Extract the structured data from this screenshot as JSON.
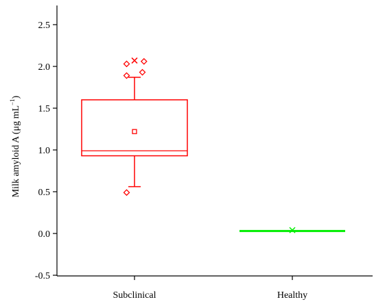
{
  "chart_data": {
    "type": "box",
    "ylabel": "Milk amyloid A (μg mL",
    "ylabel_exponent": "−1",
    "ylabel_close": ")",
    "ylim": [
      -0.5,
      2.75
    ],
    "yticks": [
      -0.5,
      0.0,
      0.5,
      1.0,
      1.5,
      2.0,
      2.5
    ],
    "ytick_labels": [
      "-0.5",
      "0.0",
      "0.5",
      "1.0",
      "1.5",
      "2.0",
      "2.5"
    ],
    "grid": false,
    "categories": [
      "Subclinical",
      "Healthy"
    ],
    "boxes": [
      {
        "category": "Subclinical",
        "color": "#ff0000",
        "whisker_low": 0.56,
        "q1": 0.93,
        "median": 0.99,
        "q3": 1.6,
        "whisker_high": 1.87,
        "mean": 1.22,
        "max_marker": 2.07,
        "outliers": [
          {
            "offset": -0.05,
            "value": 0.49
          },
          {
            "offset": -0.05,
            "value": 1.89
          },
          {
            "offset": 0.05,
            "value": 1.93
          },
          {
            "offset": -0.05,
            "value": 2.03
          },
          {
            "offset": 0.06,
            "value": 2.06
          }
        ]
      },
      {
        "category": "Healthy",
        "color": "#00ee00",
        "whisker_low": 0.03,
        "q1": 0.03,
        "median": 0.03,
        "q3": 0.03,
        "whisker_high": 0.03,
        "mean": 0.03,
        "max_marker": 0.04,
        "outliers": []
      }
    ]
  }
}
